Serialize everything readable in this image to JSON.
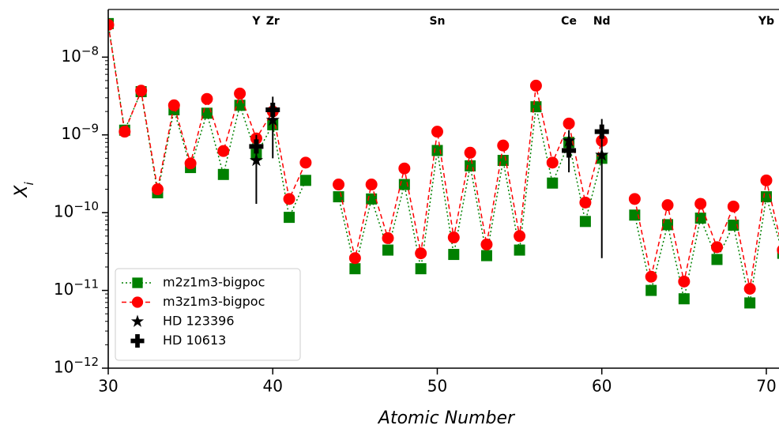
{
  "chart_data": {
    "type": "line",
    "x_label": "Atomic Number",
    "y_label": "Xi",
    "log_y": true,
    "xlim": [
      30,
      70.77
    ],
    "ylim": [
      1e-12,
      4.1e-08
    ],
    "xticks": [
      30,
      40,
      50,
      60,
      70
    ],
    "yticks": [
      {
        "value": 1e-12,
        "label": "10−12"
      },
      {
        "value": 1e-11,
        "label": "10−11"
      },
      {
        "value": 1e-10,
        "label": "10−10"
      },
      {
        "value": 1e-09,
        "label": "10−9"
      },
      {
        "value": 1e-08,
        "label": "10−8"
      }
    ],
    "legend": "lower left",
    "annotations": [
      {
        "text": "Y",
        "x": 39
      },
      {
        "text": "Zr",
        "x": 40
      },
      {
        "text": "Sn",
        "x": 50
      },
      {
        "text": "Ce",
        "x": 58
      },
      {
        "text": "Nd",
        "x": 60
      },
      {
        "text": "Yb",
        "x": 70
      }
    ],
    "series": [
      {
        "name": "m2z1m3-bigpoc",
        "color": "#008000",
        "marker": "square",
        "linestyle": "dotted",
        "x": [
          30,
          31,
          32,
          33,
          34,
          35,
          36,
          37,
          38,
          39,
          40,
          41,
          42,
          43,
          44,
          45,
          46,
          47,
          48,
          49,
          50,
          51,
          52,
          53,
          54,
          55,
          56,
          57,
          58,
          59,
          60,
          61,
          62,
          63,
          64,
          65,
          66,
          67,
          68,
          69,
          70,
          71
        ],
        "values": [
          2.7e-08,
          1.15e-09,
          3.6e-09,
          1.8e-10,
          2.1e-09,
          3.8e-10,
          1.9e-09,
          3.1e-10,
          2.4e-09,
          5.6e-10,
          1.35e-09,
          8.7e-11,
          2.6e-10,
          null,
          1.6e-10,
          1.9e-11,
          1.5e-10,
          3.3e-11,
          2.3e-10,
          1.9e-11,
          6.3e-10,
          2.9e-11,
          4e-10,
          2.8e-11,
          4.7e-10,
          3.3e-11,
          2.3e-09,
          2.4e-10,
          8e-10,
          7.7e-11,
          5e-10,
          null,
          9.3e-11,
          1e-11,
          7e-11,
          7.8e-12,
          8.5e-11,
          2.5e-11,
          6.9e-11,
          6.9e-12,
          1.6e-10,
          3e-11
        ]
      },
      {
        "name": "m3z1m3-bigpoc",
        "color": "#ff0000",
        "marker": "circle",
        "linestyle": "dashed",
        "x": [
          30,
          31,
          32,
          33,
          34,
          35,
          36,
          37,
          38,
          39,
          40,
          41,
          42,
          43,
          44,
          45,
          46,
          47,
          48,
          49,
          50,
          51,
          52,
          53,
          54,
          55,
          56,
          57,
          58,
          59,
          60,
          61,
          62,
          63,
          64,
          65,
          66,
          67,
          68,
          69,
          70,
          71
        ],
        "values": [
          2.6e-08,
          1.1e-09,
          3.7e-09,
          2e-10,
          2.4e-09,
          4.3e-10,
          2.9e-09,
          6.2e-10,
          3.4e-09,
          9e-10,
          2e-09,
          1.5e-10,
          4.4e-10,
          null,
          2.3e-10,
          2.6e-11,
          2.3e-10,
          4.7e-11,
          3.7e-10,
          3e-11,
          1.1e-09,
          4.8e-11,
          5.9e-10,
          3.9e-11,
          7.3e-10,
          5e-11,
          4.3e-09,
          4.4e-10,
          1.4e-09,
          1.35e-10,
          8.4e-10,
          null,
          1.5e-10,
          1.5e-11,
          1.25e-10,
          1.3e-11,
          1.3e-10,
          3.6e-11,
          1.2e-10,
          1.05e-11,
          2.6e-10,
          3.3e-11
        ]
      },
      {
        "name": "HD 123396",
        "color": "#000000",
        "marker": "star",
        "linestyle": "none",
        "x": [
          39,
          40,
          58,
          60
        ],
        "values": [
          4.7e-10,
          1.55e-09,
          8.4e-10,
          5.5e-10
        ]
      },
      {
        "name": "HD 10613",
        "color": "#000000",
        "marker": "plus",
        "linestyle": "none",
        "x": [
          39,
          40,
          58,
          60
        ],
        "values": [
          7.1e-10,
          2.1e-09,
          6.3e-10,
          1.1e-09
        ],
        "lower": [
          1.3e-10,
          5e-10,
          3.3e-10,
          2.6e-11
        ],
        "upper": [
          1e-09,
          3.1e-09,
          1.15e-09,
          1.6e-09
        ]
      }
    ]
  }
}
